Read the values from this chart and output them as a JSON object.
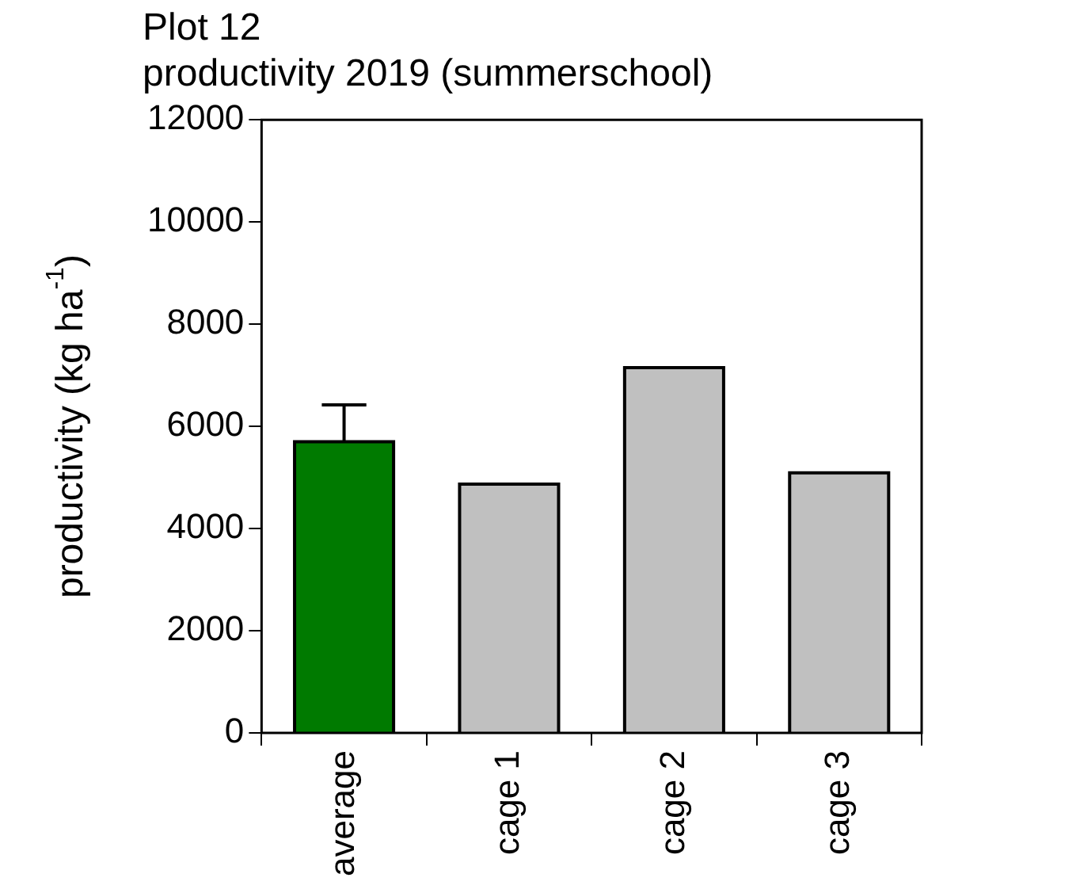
{
  "chart_data": {
    "type": "bar",
    "title": "Plot 12",
    "subtitle": "productivity 2019 (summerschool)",
    "ylabel": "productivity (kg ha$^{-1}$)",
    "categories": [
      "average",
      "cage 1",
      "cage 2",
      "cage 3"
    ],
    "values": [
      5700,
      4870,
      7150,
      5090
    ],
    "colors": [
      "#007a00",
      "#c0c0c0",
      "#c0c0c0",
      "#c0c0c0"
    ],
    "errors": [
      [
        5700,
        6420
      ],
      null,
      null,
      null
    ],
    "ylim": [
      0,
      12000
    ],
    "yticks": [
      0,
      2000,
      4000,
      6000,
      8000,
      10000,
      12000
    ],
    "grid": false,
    "legend": false
  }
}
